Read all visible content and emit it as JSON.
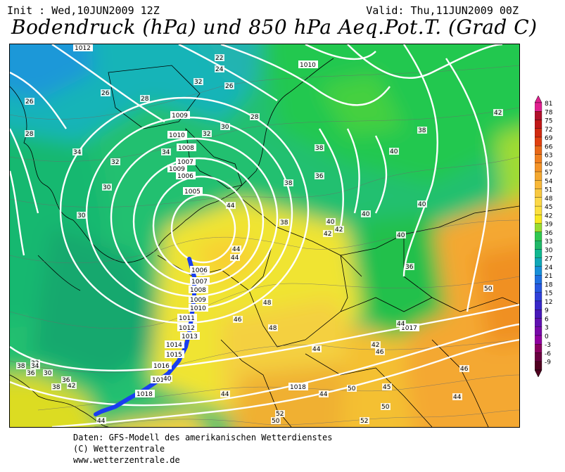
{
  "header": {
    "init": "Init : Wed,10JUN2009 12Z",
    "valid": "Valid: Thu,11JUN2009 00Z",
    "title": "Bodendruck (hPa) und 850 hPa Aeq.Pot.T. (Grad C)"
  },
  "footer": {
    "line1": "Daten: GFS-Modell des amerikanischen Wetterdienstes",
    "line2": "(C) Wetterzentrale",
    "line3": "www.wetterzentrale.de"
  },
  "legend": {
    "levels": [
      "81",
      "78",
      "75",
      "72",
      "69",
      "66",
      "63",
      "60",
      "57",
      "54",
      "51",
      "48",
      "45",
      "42",
      "39",
      "36",
      "33",
      "30",
      "27",
      "24",
      "21",
      "18",
      "15",
      "12",
      "9",
      "6",
      "3",
      "0",
      "-3",
      "-6",
      "-9"
    ],
    "colors": [
      "#e0208f",
      "#b0102a",
      "#c01818",
      "#d02a10",
      "#e04010",
      "#e86818",
      "#f08020",
      "#f49428",
      "#f4a830",
      "#f8b838",
      "#f8c840",
      "#fcd848",
      "#fce040",
      "#f8e820",
      "#98dc30",
      "#30c850",
      "#20b868",
      "#10b890",
      "#10a8b8",
      "#1890d8",
      "#2070e0",
      "#2858e0",
      "#3040d8",
      "#3828c8",
      "#4818b8",
      "#6010b0",
      "#7808a8",
      "#9000a0",
      "#8a0060",
      "#6a0040",
      "#500020"
    ]
  },
  "map": {
    "isobar_labels": [
      "1012",
      "1010",
      "1009",
      "1010",
      "1009",
      "1008",
      "1007",
      "1006",
      "1005",
      "1006",
      "1007",
      "1008",
      "1009",
      "1010",
      "1011",
      "1012",
      "1013",
      "1014",
      "1015",
      "1016",
      "1017",
      "1018",
      "1017",
      "1018"
    ],
    "theta_labels": [
      "22",
      "24",
      "26",
      "26",
      "26",
      "28",
      "28",
      "30",
      "32",
      "34",
      "34",
      "32",
      "30",
      "30",
      "38",
      "36",
      "38",
      "40",
      "38",
      "40",
      "42",
      "44",
      "44",
      "46",
      "48",
      "44",
      "42",
      "46",
      "44",
      "48",
      "50",
      "44",
      "40",
      "42",
      "44",
      "45",
      "50",
      "46",
      "44",
      "52",
      "50",
      "52",
      "50",
      "44",
      "36",
      "38",
      "30",
      "32",
      "34",
      "36",
      "38",
      "40",
      "40",
      "42",
      "28",
      "32",
      "38",
      "40",
      "44",
      "36",
      "42"
    ]
  }
}
